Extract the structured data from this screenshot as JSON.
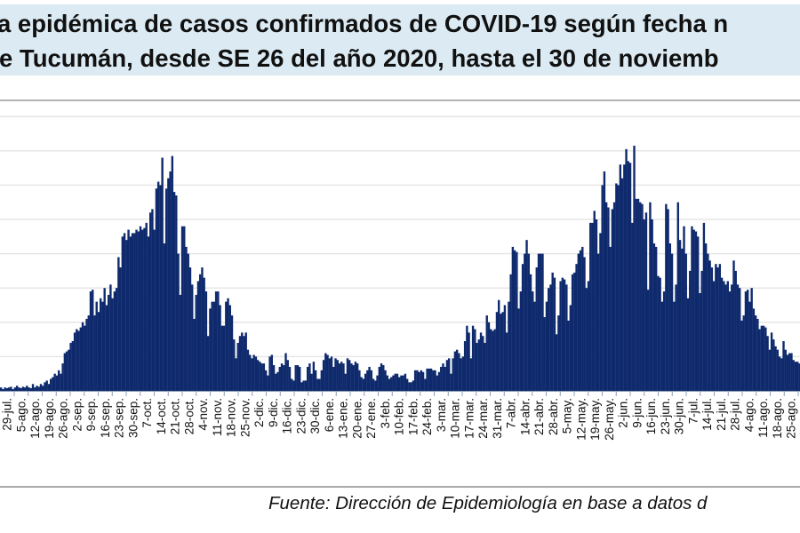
{
  "title": {
    "line1": "a epidémica de casos confirmados de COVID-19 según fecha n",
    "line2": "e Tucumán, desde SE 26 del año 2020, hasta el 30 de noviemb"
  },
  "source": "Fuente: Dirección de Epidemiología en base a datos d",
  "colors": {
    "bars": "#0f2a6c",
    "title_band": "#dcebf3",
    "grid": "#e6e6e6"
  },
  "chart_data": {
    "type": "bar",
    "title": "",
    "xlabel": "",
    "ylabel": "",
    "y_tick_labels_visible": false,
    "grid": "horizontal",
    "ylim": [
      0,
      8.5
    ],
    "y_units_note": "",
    "x_tick_labels": [
      "29-jul.",
      "5-ago.",
      "12-ago.",
      "19-ago.",
      "26-ago.",
      "2-sep.",
      "9-sep.",
      "16-sep.",
      "23-sep.",
      "30-sep.",
      "7-oct.",
      "14-oct.",
      "21-oct.",
      "28-oct.",
      "4-nov.",
      "11-nov.",
      "18-nov.",
      "25-nov.",
      "2-dic.",
      "9-dic.",
      "16-dic.",
      "23-dic.",
      "30-dic.",
      "6-ene.",
      "13-ene.",
      "20-ene.",
      "27-ene.",
      "3-feb.",
      "10-feb.",
      "17-feb.",
      "24-feb.",
      "3-mar.",
      "10-mar.",
      "17-mar.",
      "24-mar.",
      "31-mar.",
      "7-abr.",
      "14-abr.",
      "21-abr.",
      "28-abr.",
      "5-may.",
      "12-may.",
      "19-may.",
      "26-may.",
      "2-jun.",
      "9-jun.",
      "16-jun.",
      "23-jun.",
      "30-jun.",
      "7-jul.",
      "14-jul.",
      "21-jul.",
      "28-jul.",
      "4-ago.",
      "11-ago.",
      "18-ago.",
      "25-ago."
    ],
    "values": [
      0.1,
      0.05,
      0.1,
      0.08,
      0.1,
      0.12,
      0.05,
      0.1,
      0.15,
      0.1,
      0.08,
      0.12,
      0.1,
      0.15,
      0.1,
      0.08,
      0.2,
      0.1,
      0.15,
      0.12,
      0.2,
      0.15,
      0.25,
      0.3,
      0.2,
      0.35,
      0.4,
      0.5,
      0.45,
      0.6,
      0.5,
      0.8,
      1.1,
      1.15,
      1.2,
      1.4,
      1.45,
      1.7,
      1.8,
      1.75,
      1.85,
      2.0,
      1.9,
      2.1,
      2.2,
      2.9,
      2.95,
      2.2,
      2.6,
      2.3,
      2.7,
      2.6,
      3.0,
      2.5,
      2.8,
      3.1,
      2.7,
      2.9,
      3.0,
      3.9,
      3.6,
      4.5,
      4.6,
      4.4,
      4.7,
      4.5,
      4.6,
      4.6,
      4.7,
      4.65,
      4.8,
      4.7,
      4.75,
      4.9,
      4.5,
      5.2,
      5.3,
      4.7,
      5.9,
      6.1,
      6.0,
      6.8,
      4.3,
      5.9,
      6.2,
      6.4,
      6.85,
      5.8,
      5.7,
      4.0,
      2.8,
      4.8,
      4.8,
      4.2,
      4.0,
      3.6,
      3.1,
      2.1,
      2.8,
      3.2,
      3.4,
      3.6,
      3.3,
      2.9,
      1.6,
      2.4,
      2.6,
      2.6,
      2.9,
      2.9,
      2.5,
      1.9,
      1.9,
      2.6,
      2.7,
      2.5,
      2.2,
      1.5,
      0.95,
      1.4,
      1.6,
      1.7,
      1.6,
      1.7,
      1.2,
      1.05,
      0.95,
      1.05,
      1.0,
      0.9,
      0.85,
      0.8,
      0.8,
      0.6,
      0.45,
      1.0,
      1.05,
      0.75,
      0.5,
      0.55,
      0.7,
      0.8,
      0.75,
      1.1,
      0.9,
      0.7,
      0.35,
      0.3,
      0.75,
      0.75,
      0.7,
      0.25,
      0.3,
      0.3,
      0.7,
      0.8,
      0.5,
      0.85,
      0.6,
      0.35,
      0.35,
      0.6,
      0.9,
      1.1,
      1.05,
      0.95,
      1.0,
      0.7,
      0.95,
      0.9,
      0.8,
      0.85,
      0.8,
      0.5,
      0.95,
      0.9,
      0.8,
      0.75,
      0.85,
      0.8,
      0.6,
      0.4,
      0.35,
      0.5,
      0.6,
      0.7,
      0.6,
      0.35,
      0.3,
      0.45,
      0.7,
      0.8,
      0.75,
      0.6,
      0.45,
      0.35,
      0.4,
      0.45,
      0.5,
      0.5,
      0.4,
      0.45,
      0.45,
      0.5,
      0.35,
      0.25,
      0.25,
      0.3,
      0.6,
      0.6,
      0.55,
      0.6,
      0.55,
      0.35,
      0.65,
      0.65,
      0.65,
      0.6,
      0.6,
      0.45,
      0.55,
      0.7,
      0.8,
      0.7,
      0.9,
      0.95,
      0.5,
      0.95,
      1.15,
      1.2,
      1.1,
      0.95,
      1.0,
      1.45,
      1.9,
      1.7,
      0.95,
      1.9,
      1.8,
      1.4,
      1.5,
      1.7,
      1.6,
      1.4,
      2.2,
      2.0,
      1.8,
      1.75,
      1.8,
      2.3,
      2.65,
      2.25,
      2.3,
      2.5,
      1.7,
      2.6,
      3.4,
      4.2,
      4.1,
      4.05,
      2.4,
      2.9,
      3.7,
      4.0,
      4.4,
      4.0,
      3.4,
      2.9,
      2.6,
      3.6,
      4.0,
      4.0,
      4.0,
      2.15,
      2.6,
      3.0,
      3.1,
      3.45,
      3.3,
      1.65,
      2.2,
      3.2,
      3.3,
      3.25,
      3.1,
      2.05,
      2.5,
      3.4,
      3.45,
      3.7,
      4.0,
      4.1,
      4.2,
      3.9,
      3.0,
      3.2,
      4.9,
      4.9,
      5.25,
      5.0,
      4.0,
      4.6,
      6.0,
      6.4,
      5.5,
      5.35,
      4.2,
      5.3,
      5.5,
      6.05,
      6.0,
      6.6,
      6.2,
      6.6,
      7.05,
      6.7,
      6.65,
      4.9,
      7.15,
      5.6,
      5.6,
      5.5,
      5.45,
      5.0,
      5.2,
      2.95,
      5.5,
      5.0,
      4.3,
      4.2,
      3.35,
      3.3,
      2.6,
      2.9,
      5.45,
      5.3,
      4.3,
      4.0,
      2.6,
      3.1,
      5.5,
      4.4,
      4.15,
      4.8,
      4.0,
      2.7,
      3.5,
      4.8,
      4.7,
      4.65,
      4.5,
      2.85,
      3.5,
      4.9,
      4.3,
      4.0,
      3.8,
      3.6,
      3.2,
      3.7,
      3.6,
      3.7,
      3.3,
      3.2,
      3.1,
      3.2,
      2.9,
      3.1,
      3.8,
      3.5,
      3.1,
      3.0,
      2.05,
      2.2,
      2.9,
      2.95,
      2.6,
      3.0,
      2.4,
      2.2,
      2.1,
      1.8,
      1.9,
      1.9,
      1.85,
      1.6,
      1.2,
      1.7,
      1.5,
      1.3,
      1.2,
      1.0,
      0.95,
      1.45,
      1.2,
      1.05,
      1.1,
      1.1,
      0.9,
      0.85,
      0.85,
      0.8
    ]
  }
}
